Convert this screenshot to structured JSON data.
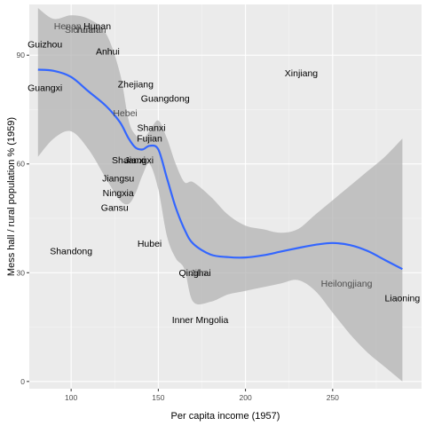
{
  "chart_data": {
    "type": "scatter",
    "title": "",
    "xlabel": "Per capita income (1957)",
    "ylabel": "Mess hall / rural population % (1959)",
    "xlim": [
      76,
      301
    ],
    "ylim": [
      -2,
      104
    ],
    "x_ticks": [
      100,
      150,
      200,
      250
    ],
    "y_ticks": [
      0,
      30,
      60,
      90
    ],
    "label_colors": {
      "point": "#000000",
      "overlap": "#4d4d4d"
    },
    "smooth_color": "#3366ff",
    "ribbon_color": "#b3b3b3",
    "points": [
      {
        "name": "Henan",
        "x": 98,
        "y": 98,
        "overlap": true
      },
      {
        "name": "Sichuan",
        "x": 106,
        "y": 97,
        "overlap": true
      },
      {
        "name": "Yunnan",
        "x": 111,
        "y": 97,
        "overlap": true
      },
      {
        "name": "Hunan",
        "x": 115,
        "y": 98,
        "overlap": false
      },
      {
        "name": "Guizhou",
        "x": 85,
        "y": 93,
        "overlap": false
      },
      {
        "name": "Anhui",
        "x": 121,
        "y": 91,
        "overlap": false
      },
      {
        "name": "Guangxi",
        "x": 85,
        "y": 81,
        "overlap": false
      },
      {
        "name": "Xinjiang",
        "x": 232,
        "y": 85,
        "overlap": false
      },
      {
        "name": "Zhejiang",
        "x": 137,
        "y": 82,
        "overlap": false
      },
      {
        "name": "Guangdong",
        "x": 154,
        "y": 78,
        "overlap": false
      },
      {
        "name": "Hebei",
        "x": 131,
        "y": 74,
        "overlap": true
      },
      {
        "name": "Shanxi",
        "x": 146,
        "y": 70,
        "overlap": false
      },
      {
        "name": "Fujian",
        "x": 145,
        "y": 67,
        "overlap": false
      },
      {
        "name": "Shaanxi",
        "x": 133,
        "y": 61,
        "overlap": false
      },
      {
        "name": "Jiangxi",
        "x": 139,
        "y": 61,
        "overlap": false
      },
      {
        "name": "Jiangsu",
        "x": 127,
        "y": 56,
        "overlap": false
      },
      {
        "name": "Ningxia",
        "x": 127,
        "y": 52,
        "overlap": false
      },
      {
        "name": "Gansu",
        "x": 125,
        "y": 48,
        "overlap": false
      },
      {
        "name": "Shandong",
        "x": 100,
        "y": 36,
        "overlap": false
      },
      {
        "name": "Hubei",
        "x": 145,
        "y": 38,
        "overlap": false
      },
      {
        "name": "Qinghai",
        "x": 171,
        "y": 30,
        "overlap": false
      },
      {
        "name": "Jilin",
        "x": 173,
        "y": 30,
        "overlap": true
      },
      {
        "name": "Heilongjiang",
        "x": 258,
        "y": 27,
        "overlap": true
      },
      {
        "name": "Liaoning",
        "x": 290,
        "y": 23,
        "overlap": false
      },
      {
        "name": "Inner Mngolia",
        "x": 174,
        "y": 17,
        "overlap": false
      }
    ],
    "smooth": {
      "x": [
        81,
        90,
        100,
        110,
        120,
        128,
        133,
        137,
        141,
        145,
        150,
        155,
        160,
        165,
        170,
        180,
        190,
        200,
        210,
        220,
        230,
        240,
        250,
        260,
        270,
        280,
        290
      ],
      "y": [
        86,
        85.7,
        84,
        80,
        76,
        71.5,
        67,
        64.5,
        64,
        65,
        64,
        56,
        48,
        42,
        38,
        35,
        34.3,
        34.2,
        34.8,
        35.8,
        36.8,
        37.7,
        38.2,
        37.6,
        36,
        33.5,
        31
      ],
      "upper": [
        103,
        100,
        101,
        100,
        96,
        85,
        72,
        68,
        67,
        69,
        72,
        67,
        60,
        55,
        55,
        51,
        46,
        43,
        42,
        41,
        42,
        46,
        50,
        54,
        58,
        62,
        67
      ],
      "lower": [
        62,
        67,
        69,
        64,
        56,
        50,
        49,
        52,
        57,
        60,
        53,
        40,
        34,
        31,
        22,
        22,
        24,
        25,
        26,
        27,
        28,
        25,
        19,
        13,
        8,
        4,
        0
      ]
    }
  }
}
